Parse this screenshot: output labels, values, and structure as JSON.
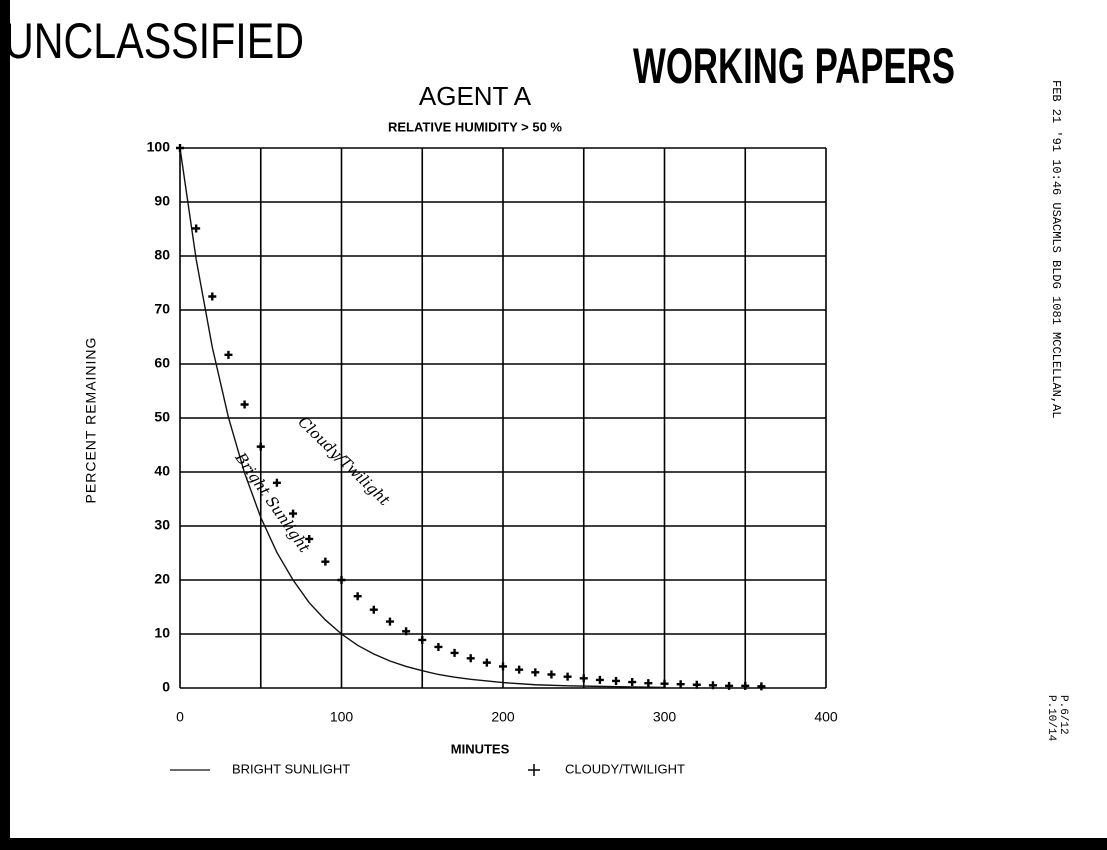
{
  "stamps": {
    "left": "UNCLASSIFIED",
    "right": "WORKING PAPERS"
  },
  "fax_header": "FEB 21 '91 10:46 USACMLS BLDG 1081 MCCLELLAN,AL",
  "page_numbers": [
    "P.6/12",
    "P.10/14"
  ],
  "chart_data": {
    "type": "line",
    "title": "AGENT A",
    "subtitle": "RELATIVE HUMIDITY > 50 %",
    "x_label": "MINUTES",
    "y_label": "PERCENT REMAINING",
    "xlim": [
      0,
      400
    ],
    "xticks": [
      0,
      100,
      200,
      300,
      400
    ],
    "ylim": [
      0,
      100
    ],
    "yticks": [
      0,
      10,
      20,
      30,
      40,
      50,
      60,
      70,
      80,
      90,
      100
    ],
    "grid": true,
    "legend": "bottom",
    "annotations": [
      "Cloudy/Twilight",
      "Bright Sunlight"
    ],
    "series": [
      {
        "name": "BRIGHT SUNLIGHT",
        "color": "#111111",
        "marker": "none",
        "x": [
          0,
          10,
          20,
          30,
          40,
          50,
          60,
          70,
          80,
          90,
          100,
          110,
          120,
          130,
          140,
          150,
          160,
          170,
          180,
          190,
          200,
          220,
          240,
          260,
          280,
          300
        ],
        "values": [
          100,
          79.4,
          63.1,
          50.1,
          39.8,
          31.6,
          25.1,
          20.0,
          15.8,
          12.6,
          10.0,
          7.9,
          6.3,
          5.0,
          4.0,
          3.2,
          2.5,
          2.0,
          1.6,
          1.3,
          1.0,
          0.6,
          0.4,
          0.3,
          0.2,
          0.1
        ]
      },
      {
        "name": "CLOUDY/TWILIGHT",
        "color": "#000000",
        "marker": "+",
        "x": [
          0,
          10,
          20,
          30,
          40,
          50,
          60,
          70,
          80,
          90,
          100,
          110,
          120,
          130,
          140,
          150,
          160,
          170,
          180,
          190,
          200,
          210,
          220,
          230,
          240,
          250,
          260,
          270,
          280,
          290,
          300,
          310,
          320,
          330,
          340,
          350,
          360
        ],
        "values": [
          100,
          85.1,
          72.5,
          61.7,
          52.5,
          44.7,
          38.0,
          32.3,
          27.6,
          23.4,
          20.0,
          17.0,
          14.5,
          12.3,
          10.5,
          8.9,
          7.6,
          6.5,
          5.5,
          4.7,
          4.0,
          3.4,
          2.9,
          2.5,
          2.1,
          1.8,
          1.5,
          1.3,
          1.1,
          0.9,
          0.8,
          0.7,
          0.6,
          0.5,
          0.4,
          0.4,
          0.3
        ]
      }
    ]
  }
}
